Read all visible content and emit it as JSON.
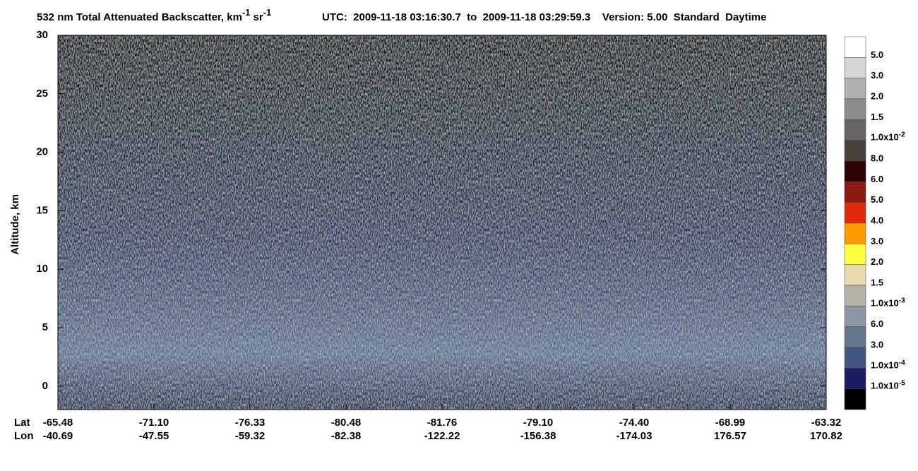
{
  "chart_data": {
    "type": "heatmap",
    "title": "532 nm Total Attenuated Backscatter, km",
    "title_unit_exp": "-1",
    "title_unit2": "sr",
    "title_unit2_exp": "-1",
    "subtitle": "UTC:  2009-11-18 03:16:30.7  to  2009-11-18 03:29:59.3    Version: 5.00  Standard  Daytime",
    "ylabel": "Altitude, km",
    "ylim": [
      -2,
      30
    ],
    "yticks": [
      0,
      5,
      10,
      15,
      20,
      25,
      30
    ],
    "x_row_labels": [
      "Lat",
      "Lon"
    ],
    "lat": [
      "-65.48",
      "-71.10",
      "-76.33",
      "-80.48",
      "-81.76",
      "-79.10",
      "-74.40",
      "-68.99",
      "-63.32"
    ],
    "lon": [
      "-40.69",
      "-47.55",
      "-59.32",
      "-82.38",
      "-122.22",
      "-156.38",
      "-174.03",
      "176.57",
      "170.82"
    ],
    "colorbar": {
      "colors": [
        "#ffffff",
        "#d6d6d6",
        "#b0b0b0",
        "#8c8c8c",
        "#666666",
        "#4a403c",
        "#2e0303",
        "#8b1a12",
        "#e0280a",
        "#ff9a00",
        "#ffff40",
        "#eadcb0",
        "#b4b2a6",
        "#8e98a4",
        "#65768c",
        "#415680",
        "#1c1c60",
        "#000000"
      ],
      "labels": [
        "5.0",
        "3.0",
        "2.0",
        "1.5",
        {
          "base": "1.0x10",
          "exp": "-2"
        },
        "8.0",
        "6.0",
        "5.0",
        "4.0",
        "3.0",
        "2.0",
        "1.5",
        {
          "base": "1.0x10",
          "exp": "-3"
        },
        "6.0",
        "3.0",
        {
          "base": "1.0x10",
          "exp": "-4"
        },
        {
          "base": "1.0x10",
          "exp": "-5"
        }
      ]
    }
  }
}
